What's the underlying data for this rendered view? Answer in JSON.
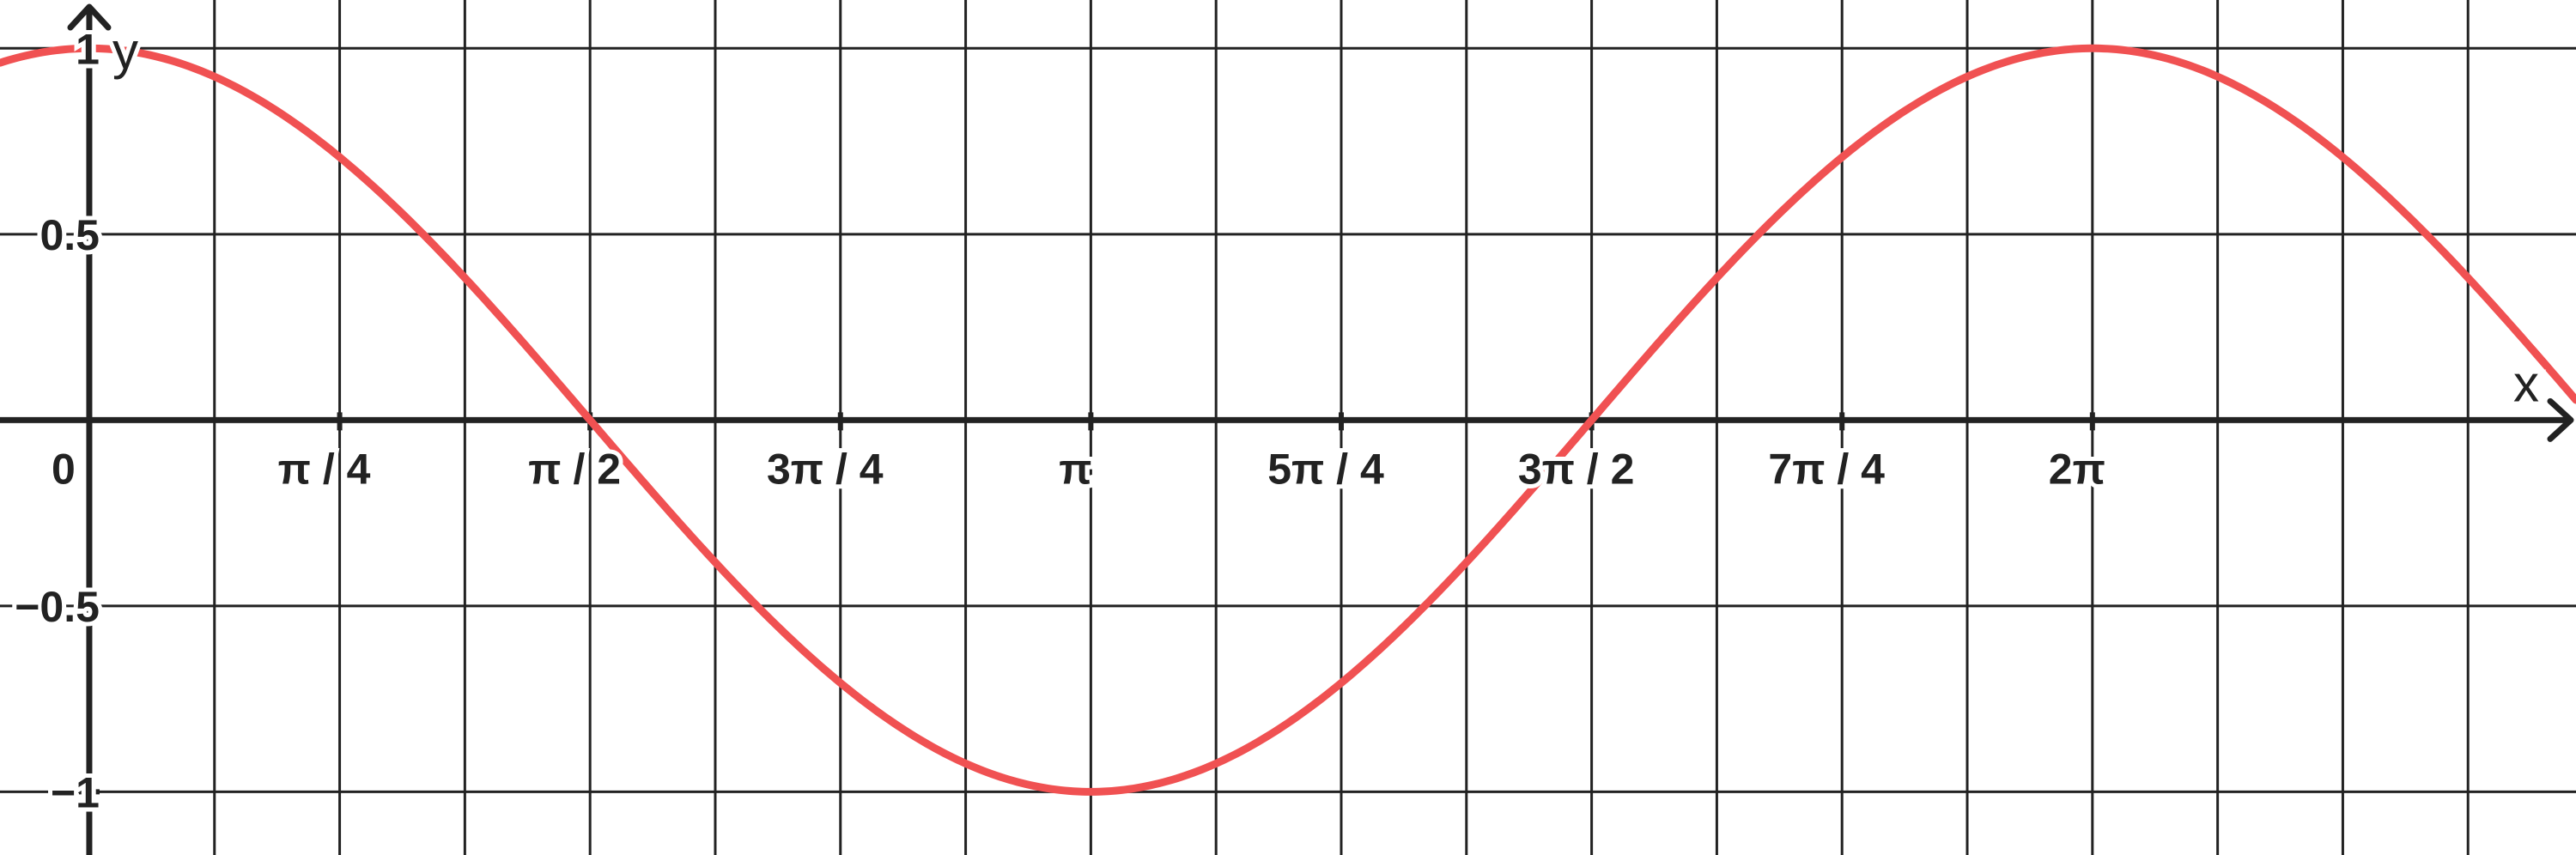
{
  "chart_data": {
    "type": "line",
    "xlabel": "x",
    "ylabel": "y",
    "xlim": [
      -0.28,
      7.8
    ],
    "ylim": [
      -1.17,
      1.13
    ],
    "origin_label": "0",
    "x_ticks": [
      {
        "value": 0.7854,
        "label": "π / 4"
      },
      {
        "value": 1.5708,
        "label": "π / 2"
      },
      {
        "value": 2.3562,
        "label": "3π / 4"
      },
      {
        "value": 3.1416,
        "label": "π"
      },
      {
        "value": 3.927,
        "label": "5π / 4"
      },
      {
        "value": 4.7124,
        "label": "3π / 2"
      },
      {
        "value": 5.4978,
        "label": "7π / 4"
      },
      {
        "value": 6.2832,
        "label": "2π"
      }
    ],
    "y_ticks": [
      {
        "value": 1,
        "label": "1"
      },
      {
        "value": 0.5,
        "label": "0.5"
      },
      {
        "value": -0.5,
        "label": "−0.5"
      },
      {
        "value": -1,
        "label": "−1"
      }
    ],
    "grid": true,
    "series": [
      {
        "function": "cos",
        "color": "#f05152",
        "x": [
          -0.28,
          0,
          0.3927,
          0.7854,
          1.1781,
          1.5708,
          1.9635,
          2.3562,
          2.7489,
          3.1416,
          3.5343,
          3.927,
          4.3197,
          4.7124,
          5.1051,
          5.4978,
          5.8905,
          6.2832,
          6.6759,
          7.0686,
          7.4613,
          7.8
        ],
        "y": [
          0.961,
          1,
          0.924,
          0.707,
          0.383,
          0,
          -0.383,
          -0.707,
          -0.924,
          -1,
          -0.924,
          -0.707,
          -0.383,
          0,
          0.383,
          0.707,
          0.924,
          1,
          0.924,
          0.707,
          0.383,
          0.054
        ]
      }
    ]
  },
  "colors": {
    "curve": "#f05152",
    "axis": "#222222",
    "grid": "#222222",
    "background": "#ffffff"
  }
}
